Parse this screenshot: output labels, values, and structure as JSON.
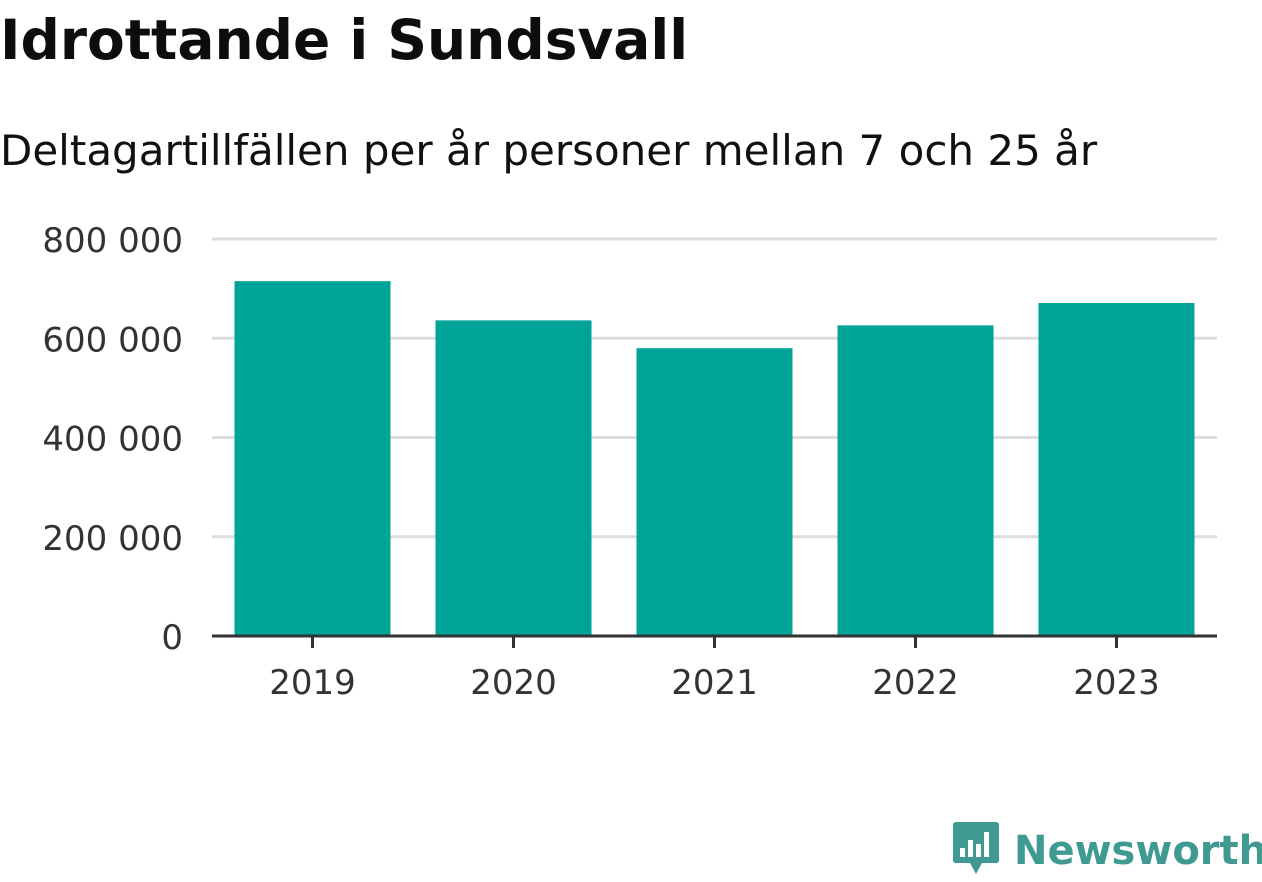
{
  "title": "Idrottande i Sundsvall",
  "subtitle": "Deltagartillfällen per år personer mellan 7 och 25 år",
  "brand": {
    "name": "Newsworthy",
    "icon": "bar-chart-bubble-icon",
    "color": "#3f9a91"
  },
  "colors": {
    "bar": "#00a398",
    "grid": "#dddddd",
    "axis": "#333333",
    "tick_text": "#333333"
  },
  "chart_data": {
    "type": "bar",
    "categories": [
      "2019",
      "2020",
      "2021",
      "2022",
      "2023"
    ],
    "values": [
      715000,
      636000,
      580000,
      626000,
      671000
    ],
    "ylim": [
      0,
      800000
    ],
    "yticks": [
      0,
      200000,
      400000,
      600000,
      800000
    ],
    "ytick_labels": [
      "0",
      "200 000",
      "400 000",
      "600 000",
      "800 000"
    ],
    "grid": true,
    "xlabel": "",
    "ylabel": ""
  }
}
